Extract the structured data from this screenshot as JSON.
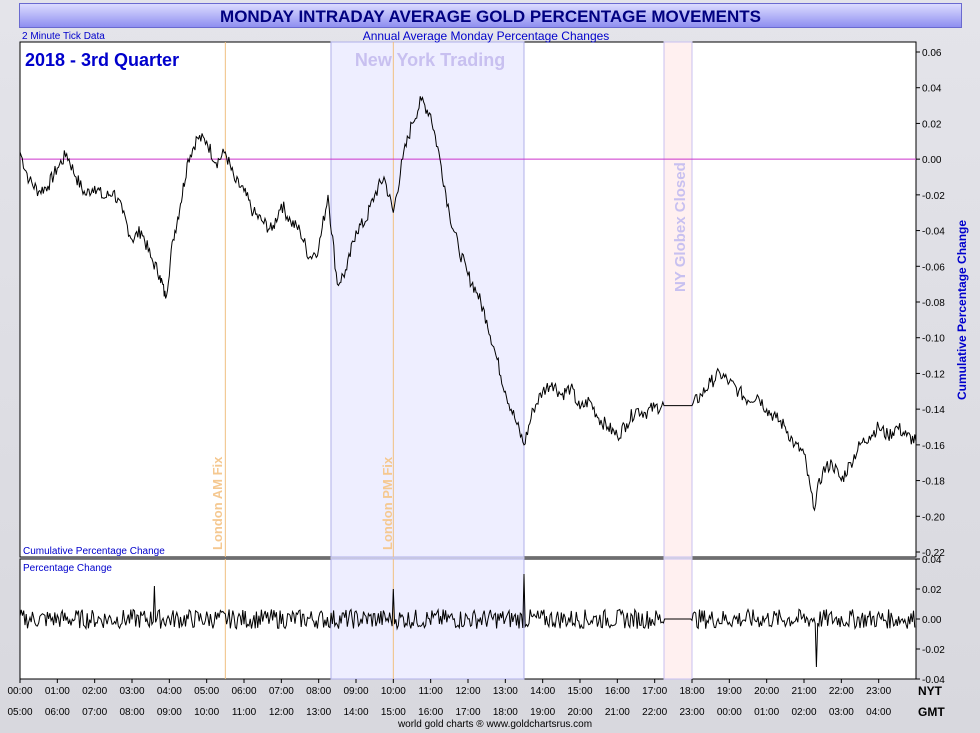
{
  "title": "MONDAY INTRADAY AVERAGE GOLD PERCENTAGE MOVEMENTS",
  "subtitle": "Annual Average Monday Percentage Changes",
  "tick_note": "2 Minute Tick Data",
  "period": "2018 - 3rd Quarter",
  "ny_trading_label": "New York Trading",
  "globex_closed_label": "NY Globex Closed",
  "london_am_label": "London AM Fix",
  "london_pm_label": "London PM Fix",
  "upper_panel_label": "Cumulative Percentage Change",
  "lower_panel_label": "Percentage Change",
  "y_axis_title": "Cumulative Percentage Change",
  "nyt_label": "NYT",
  "gmt_label": "GMT",
  "footer": "world gold charts ® www.goldchartsrus.com",
  "colors": {
    "line": "#000000",
    "zero_line": "#cc33cc",
    "ny_shade": "#eeeeff",
    "globex_shade": "#fff0f0",
    "fix_line": "#f0c080",
    "label_blue": "#0000cc"
  },
  "chart_data": [
    {
      "type": "line",
      "name": "cumulative",
      "xlim": [
        0,
        24
      ],
      "ylim": [
        -0.22,
        0.06
      ],
      "y_ticks": [
        "0.06",
        "0.04",
        "0.02",
        "0.00",
        "-0.02",
        "-0.04",
        "-0.06",
        "-0.08",
        "-0.10",
        "-0.12",
        "-0.14",
        "-0.16",
        "-0.18",
        "-0.20",
        "-0.22"
      ],
      "x_ticks_nyt": [
        "00:00",
        "01:00",
        "02:00",
        "03:00",
        "04:00",
        "05:00",
        "06:00",
        "07:00",
        "08:00",
        "09:00",
        "10:00",
        "11:00",
        "12:00",
        "13:00",
        "14:00",
        "15:00",
        "16:00",
        "17:00",
        "18:00",
        "19:00",
        "20:00",
        "21:00",
        "22:00",
        "23:00"
      ],
      "x_ticks_gmt": [
        "05:00",
        "06:00",
        "07:00",
        "08:00",
        "09:00",
        "10:00",
        "11:00",
        "12:00",
        "13:00",
        "14:00",
        "15:00",
        "16:00",
        "17:00",
        "18:00",
        "19:00",
        "20:00",
        "21:00",
        "22:00",
        "23:00",
        "00:00",
        "01:00",
        "02:00",
        "03:00",
        "04:00"
      ],
      "ny_trading_range": [
        8.33,
        13.5
      ],
      "globex_closed_range": [
        17.25,
        18.0
      ],
      "london_am_fix": 5.5,
      "london_pm_fix": 10.0,
      "points": [
        [
          0.0,
          0.004
        ],
        [
          0.25,
          -0.012
        ],
        [
          0.5,
          -0.018
        ],
        [
          0.75,
          -0.015
        ],
        [
          1.0,
          -0.005
        ],
        [
          1.25,
          0.003
        ],
        [
          1.5,
          -0.01
        ],
        [
          1.75,
          -0.02
        ],
        [
          2.0,
          -0.015
        ],
        [
          2.25,
          -0.022
        ],
        [
          2.5,
          -0.018
        ],
        [
          2.75,
          -0.03
        ],
        [
          3.0,
          -0.045
        ],
        [
          3.25,
          -0.04
        ],
        [
          3.5,
          -0.055
        ],
        [
          3.75,
          -0.065
        ],
        [
          3.9,
          -0.078
        ],
        [
          4.1,
          -0.045
        ],
        [
          4.3,
          -0.025
        ],
        [
          4.5,
          0.0
        ],
        [
          4.75,
          0.012
        ],
        [
          5.0,
          0.01
        ],
        [
          5.25,
          -0.002
        ],
        [
          5.5,
          0.004
        ],
        [
          5.75,
          -0.012
        ],
        [
          6.0,
          -0.018
        ],
        [
          6.25,
          -0.03
        ],
        [
          6.5,
          -0.035
        ],
        [
          6.75,
          -0.04
        ],
        [
          7.0,
          -0.025
        ],
        [
          7.25,
          -0.035
        ],
        [
          7.5,
          -0.04
        ],
        [
          7.75,
          -0.055
        ],
        [
          8.0,
          -0.05
        ],
        [
          8.25,
          -0.02
        ],
        [
          8.5,
          -0.07
        ],
        [
          8.75,
          -0.062
        ],
        [
          9.0,
          -0.04
        ],
        [
          9.25,
          -0.035
        ],
        [
          9.5,
          -0.02
        ],
        [
          9.75,
          -0.01
        ],
        [
          10.0,
          -0.03
        ],
        [
          10.25,
          0.0
        ],
        [
          10.5,
          0.02
        ],
        [
          10.75,
          0.033
        ],
        [
          11.0,
          0.025
        ],
        [
          11.25,
          0.0
        ],
        [
          11.5,
          -0.03
        ],
        [
          11.75,
          -0.05
        ],
        [
          12.0,
          -0.065
        ],
        [
          12.25,
          -0.075
        ],
        [
          12.5,
          -0.09
        ],
        [
          12.75,
          -0.11
        ],
        [
          13.0,
          -0.13
        ],
        [
          13.25,
          -0.145
        ],
        [
          13.5,
          -0.16
        ],
        [
          13.75,
          -0.14
        ],
        [
          14.0,
          -0.13
        ],
        [
          14.25,
          -0.125
        ],
        [
          14.5,
          -0.132
        ],
        [
          14.75,
          -0.128
        ],
        [
          15.0,
          -0.14
        ],
        [
          15.25,
          -0.135
        ],
        [
          15.5,
          -0.145
        ],
        [
          15.75,
          -0.15
        ],
        [
          16.0,
          -0.155
        ],
        [
          16.25,
          -0.148
        ],
        [
          16.5,
          -0.14
        ],
        [
          16.75,
          -0.142
        ],
        [
          17.0,
          -0.139
        ],
        [
          17.25,
          -0.138
        ],
        [
          17.5,
          -0.138
        ],
        [
          18.0,
          -0.138
        ],
        [
          18.25,
          -0.132
        ],
        [
          18.5,
          -0.125
        ],
        [
          18.75,
          -0.12
        ],
        [
          19.0,
          -0.125
        ],
        [
          19.25,
          -0.13
        ],
        [
          19.5,
          -0.135
        ],
        [
          19.75,
          -0.132
        ],
        [
          20.0,
          -0.14
        ],
        [
          20.25,
          -0.145
        ],
        [
          20.5,
          -0.15
        ],
        [
          20.75,
          -0.16
        ],
        [
          21.0,
          -0.165
        ],
        [
          21.25,
          -0.195
        ],
        [
          21.5,
          -0.175
        ],
        [
          21.75,
          -0.17
        ],
        [
          22.0,
          -0.18
        ],
        [
          22.25,
          -0.17
        ],
        [
          22.5,
          -0.16
        ],
        [
          22.75,
          -0.155
        ],
        [
          23.0,
          -0.15
        ],
        [
          23.25,
          -0.155
        ],
        [
          23.5,
          -0.15
        ],
        [
          23.75,
          -0.155
        ],
        [
          24.0,
          -0.158
        ]
      ]
    },
    {
      "type": "line",
      "name": "percentage_change",
      "xlim": [
        0,
        24
      ],
      "ylim": [
        -0.04,
        0.04
      ],
      "y_ticks": [
        "0.04",
        "0.02",
        "0.00",
        "-0.02",
        "-0.04"
      ],
      "spikes": [
        [
          3.6,
          0.022
        ],
        [
          10.0,
          0.02
        ],
        [
          13.5,
          0.03
        ],
        [
          21.35,
          -0.032
        ]
      ]
    }
  ]
}
